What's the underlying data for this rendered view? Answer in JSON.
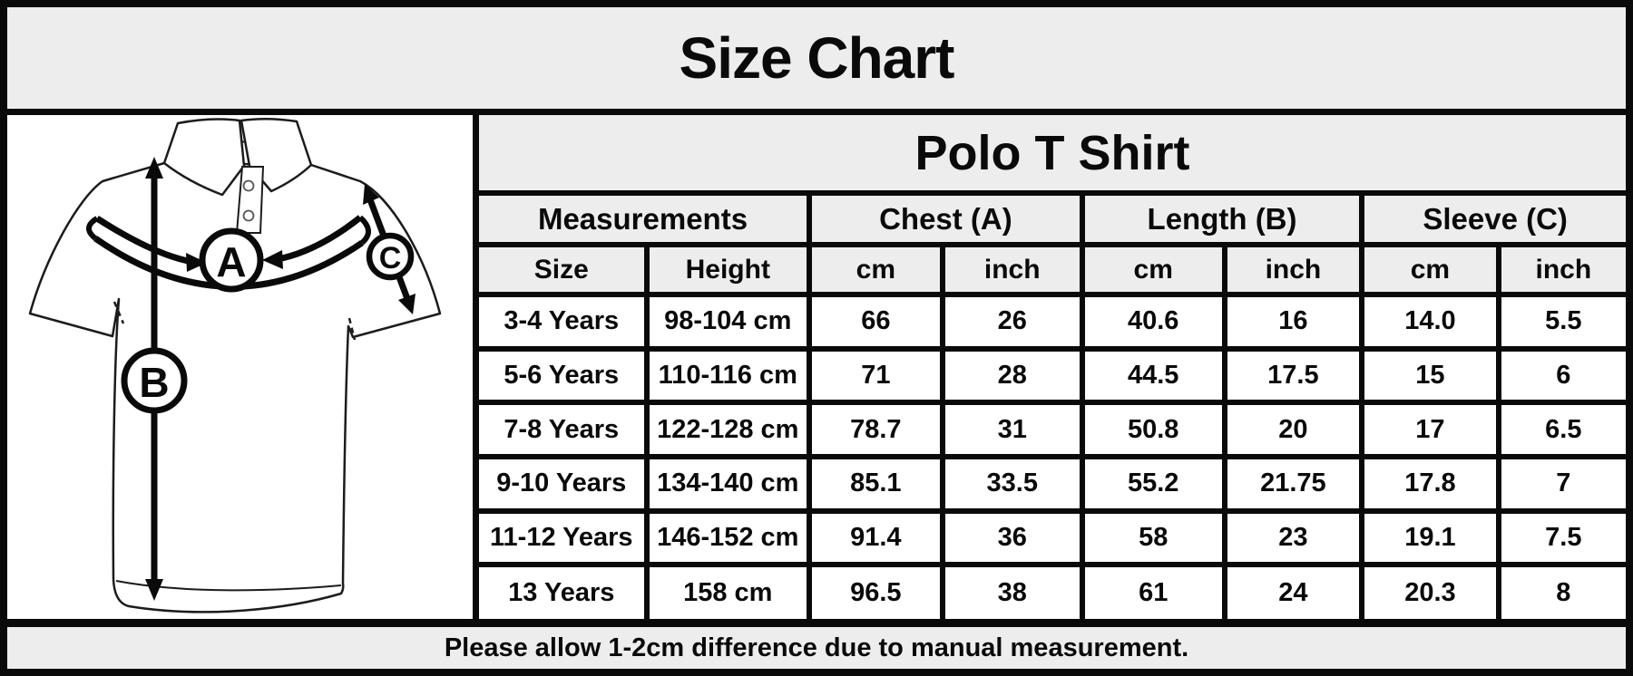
{
  "page_title": "Size Chart",
  "product_title": "Polo T Shirt",
  "diagram": {
    "chest_label": "A",
    "length_label": "B",
    "sleeve_label": "C"
  },
  "table": {
    "group_headers": [
      {
        "label": "Measurements"
      },
      {
        "label": "Chest (A)"
      },
      {
        "label": "Length (B)"
      },
      {
        "label": "Sleeve (C)"
      }
    ],
    "sub_headers": [
      "Size",
      "Height",
      "cm",
      "inch",
      "cm",
      "inch",
      "cm",
      "inch"
    ],
    "rows": [
      [
        "3-4 Years",
        "98-104 cm",
        "66",
        "26",
        "40.6",
        "16",
        "14.0",
        "5.5"
      ],
      [
        "5-6 Years",
        "110-116 cm",
        "71",
        "28",
        "44.5",
        "17.5",
        "15",
        "6"
      ],
      [
        "7-8 Years",
        "122-128 cm",
        "78.7",
        "31",
        "50.8",
        "20",
        "17",
        "6.5"
      ],
      [
        "9-10 Years",
        "134-140 cm",
        "85.1",
        "33.5",
        "55.2",
        "21.75",
        "17.8",
        "7"
      ],
      [
        "11-12 Years",
        "146-152 cm",
        "91.4",
        "36",
        "58",
        "23",
        "19.1",
        "7.5"
      ],
      [
        "13 Years",
        "158 cm",
        "96.5",
        "38",
        "61",
        "24",
        "20.3",
        "8"
      ]
    ]
  },
  "footer_note": "Please allow 1-2cm difference due to manual measurement.",
  "colors": {
    "header_bg": "#ededed",
    "border": "#0a0a0a",
    "cell_bg": "#ffffff"
  },
  "chart_data": {
    "type": "table",
    "title": "Size Chart",
    "subtitle": "Polo T Shirt",
    "columns": [
      "Size",
      "Height",
      "Chest (A) cm",
      "Chest (A) inch",
      "Length (B) cm",
      "Length (B) inch",
      "Sleeve (C) cm",
      "Sleeve (C) inch"
    ],
    "sizes": [
      "3-4 Years",
      "5-6 Years",
      "7-8 Years",
      "9-10 Years",
      "11-12 Years",
      "13 Years"
    ],
    "heights": [
      "98-104 cm",
      "110-116 cm",
      "122-128 cm",
      "134-140 cm",
      "146-152 cm",
      "158 cm"
    ],
    "series": [
      {
        "name": "Chest (A) cm",
        "values": [
          66,
          71,
          78.7,
          85.1,
          91.4,
          96.5
        ]
      },
      {
        "name": "Chest (A) inch",
        "values": [
          26,
          28,
          31,
          33.5,
          36,
          38
        ]
      },
      {
        "name": "Length (B) cm",
        "values": [
          40.6,
          44.5,
          50.8,
          55.2,
          58,
          61
        ]
      },
      {
        "name": "Length (B) inch",
        "values": [
          16,
          17.5,
          20,
          21.75,
          23,
          24
        ]
      },
      {
        "name": "Sleeve (C) cm",
        "values": [
          14.0,
          15,
          17,
          17.8,
          19.1,
          20.3
        ]
      },
      {
        "name": "Sleeve (C) inch",
        "values": [
          5.5,
          6,
          6.5,
          7,
          7.5,
          8
        ]
      }
    ],
    "note": "Please allow 1-2cm difference due to manual measurement."
  }
}
